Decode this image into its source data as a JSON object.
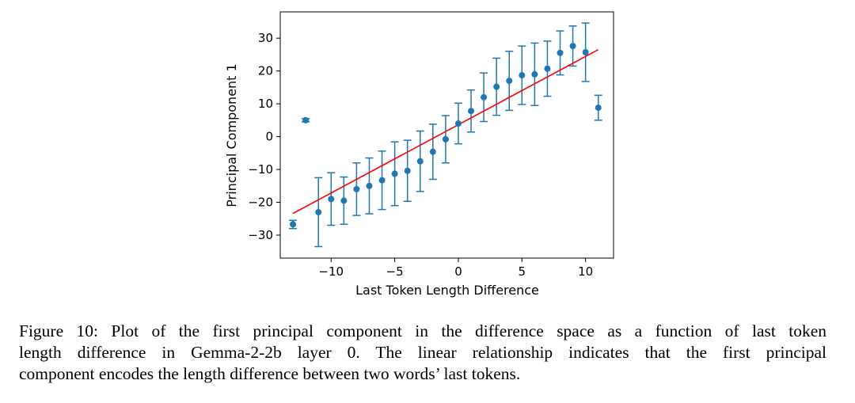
{
  "chart_data": {
    "type": "scatter",
    "xlabel": "Last Token Length Difference",
    "ylabel": "Principal Component 1",
    "xlim": [
      -14,
      12.2
    ],
    "ylim": [
      -37,
      38
    ],
    "x_ticks": [
      -10,
      -5,
      0,
      5,
      10
    ],
    "y_ticks": [
      -30,
      -20,
      -10,
      0,
      10,
      20,
      30
    ],
    "x_tick_labels": [
      "−10",
      "−5",
      "0",
      "5",
      "10"
    ],
    "y_tick_labels": [
      "−30",
      "−20",
      "−10",
      "0",
      "10",
      "20",
      "30"
    ],
    "grid": false,
    "point_color": "#1f77b4",
    "fit_color": "#ff0000",
    "points": [
      {
        "x": -13,
        "y": -26.7,
        "err_low": -28.0,
        "err_high": -25.5
      },
      {
        "x": -12,
        "y": 5.0,
        "err_low": 4.5,
        "err_high": 5.5
      },
      {
        "x": -11,
        "y": -23.0,
        "err_low": -33.5,
        "err_high": -12.5
      },
      {
        "x": -10,
        "y": -19.0,
        "err_low": -27.0,
        "err_high": -11.0
      },
      {
        "x": -9,
        "y": -19.5,
        "err_low": -26.7,
        "err_high": -12.3
      },
      {
        "x": -8,
        "y": -16.0,
        "err_low": -24.0,
        "err_high": -8.0
      },
      {
        "x": -7,
        "y": -15.0,
        "err_low": -23.5,
        "err_high": -6.5
      },
      {
        "x": -6,
        "y": -13.3,
        "err_low": -22.2,
        "err_high": -4.4
      },
      {
        "x": -5,
        "y": -11.3,
        "err_low": -21.0,
        "err_high": -1.6
      },
      {
        "x": -4,
        "y": -10.4,
        "err_low": -19.7,
        "err_high": -1.1
      },
      {
        "x": -3,
        "y": -7.5,
        "err_low": -16.7,
        "err_high": 1.7
      },
      {
        "x": -2,
        "y": -4.6,
        "err_low": -13.0,
        "err_high": 3.8
      },
      {
        "x": -1,
        "y": -0.8,
        "err_low": -8.0,
        "err_high": 6.4
      },
      {
        "x": 0,
        "y": 4.0,
        "err_low": -2.2,
        "err_high": 10.2
      },
      {
        "x": 1,
        "y": 7.8,
        "err_low": 1.4,
        "err_high": 14.2
      },
      {
        "x": 2,
        "y": 12.0,
        "err_low": 4.6,
        "err_high": 19.4
      },
      {
        "x": 3,
        "y": 15.2,
        "err_low": 6.5,
        "err_high": 23.9
      },
      {
        "x": 4,
        "y": 17.0,
        "err_low": 8.0,
        "err_high": 26.0
      },
      {
        "x": 5,
        "y": 18.7,
        "err_low": 9.8,
        "err_high": 27.6
      },
      {
        "x": 6,
        "y": 19.0,
        "err_low": 9.5,
        "err_high": 28.5
      },
      {
        "x": 7,
        "y": 20.7,
        "err_low": 12.3,
        "err_high": 29.1
      },
      {
        "x": 8,
        "y": 25.5,
        "err_low": 18.8,
        "err_high": 32.2
      },
      {
        "x": 9,
        "y": 27.6,
        "err_low": 21.5,
        "err_high": 33.7
      },
      {
        "x": 10,
        "y": 25.7,
        "err_low": 16.8,
        "err_high": 34.6
      },
      {
        "x": 11,
        "y": 8.8,
        "err_low": 5.0,
        "err_high": 12.6
      }
    ],
    "fit_line": {
      "x": [
        -13,
        11
      ],
      "y": [
        -23.4,
        26.5
      ]
    }
  },
  "caption": {
    "line1": "Figure 10: Plot of the first principal component in the difference space as a function of last token",
    "line2": "length difference in Gemma-2-2b layer 0.  The linear relationship indicates that the first principal",
    "line3": "component encodes the length difference between two words’ last tokens."
  }
}
